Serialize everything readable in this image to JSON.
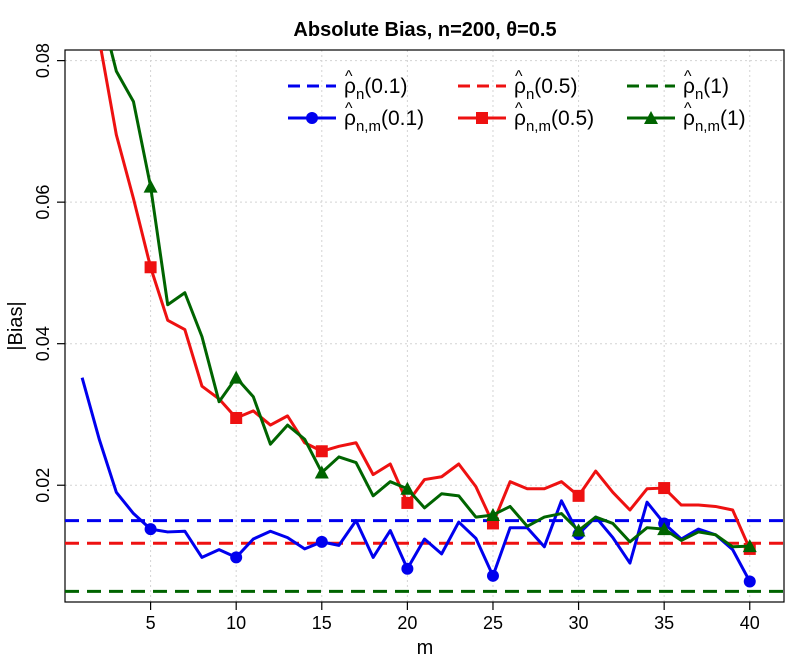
{
  "chart_data": {
    "type": "line",
    "title": "Absolute Bias, n=200, θ=0.5",
    "xlabel": "m",
    "ylabel": "|Bias|",
    "xlim": [
      0,
      42
    ],
    "ylim": [
      0.0035,
      0.0815
    ],
    "x_ticks": [
      5,
      10,
      15,
      20,
      25,
      30,
      35,
      40
    ],
    "y_ticks": [
      0.02,
      0.04,
      0.06,
      0.08
    ],
    "x_tick_labels": [
      "5",
      "10",
      "15",
      "20",
      "25",
      "30",
      "35",
      "40"
    ],
    "y_tick_labels": [
      "0.02",
      "0.04",
      "0.06",
      "0.08"
    ],
    "grid": true,
    "legend_position": "top-right",
    "hlines": [
      {
        "name_base": "ρ",
        "name_hat": "^",
        "name_sub": "n",
        "name_arg": "(0.1)",
        "value": 0.015,
        "color": "#0000ee"
      },
      {
        "name_base": "ρ",
        "name_hat": "^",
        "name_sub": "n",
        "name_arg": "(0.5)",
        "value": 0.0118,
        "color": "#ee1111"
      },
      {
        "name_base": "ρ",
        "name_hat": "^",
        "name_sub": "n",
        "name_arg": "(1)",
        "value": 0.005,
        "color": "#006400"
      }
    ],
    "series": [
      {
        "name_base": "ρ",
        "name_hat": "^",
        "name_sub": "n,m",
        "name_arg": "(0.1)",
        "color": "#0000ee",
        "marker": "circle",
        "x": [
          1,
          2,
          3,
          4,
          5,
          6,
          7,
          8,
          9,
          10,
          11,
          12,
          13,
          14,
          15,
          16,
          17,
          18,
          19,
          20,
          21,
          22,
          23,
          24,
          25,
          26,
          27,
          28,
          29,
          30,
          31,
          32,
          33,
          34,
          35,
          36,
          37,
          38,
          39,
          40
        ],
        "y": [
          0.0352,
          0.0265,
          0.019,
          0.016,
          0.0138,
          0.0134,
          0.0135,
          0.0098,
          0.0109,
          0.0098,
          0.0124,
          0.0135,
          0.0126,
          0.011,
          0.012,
          0.0115,
          0.015,
          0.0098,
          0.0136,
          0.0082,
          0.0124,
          0.0103,
          0.0148,
          0.0125,
          0.0072,
          0.014,
          0.014,
          0.0113,
          0.0178,
          0.0131,
          0.0155,
          0.0126,
          0.009,
          0.0176,
          0.0146,
          0.0124,
          0.0138,
          0.013,
          0.0109,
          0.0064
        ],
        "marker_x": [
          5,
          10,
          15,
          20,
          25,
          30,
          35,
          40
        ]
      },
      {
        "name_base": "ρ",
        "name_hat": "^",
        "name_sub": "n,m",
        "name_arg": "(0.5)",
        "color": "#ee1111",
        "marker": "square",
        "x": [
          2,
          3,
          4,
          5,
          6,
          7,
          8,
          9,
          10,
          11,
          12,
          13,
          14,
          15,
          16,
          17,
          18,
          19,
          20,
          21,
          22,
          23,
          24,
          25,
          26,
          27,
          28,
          29,
          30,
          31,
          32,
          33,
          34,
          35,
          36,
          37,
          38,
          39,
          40
        ],
        "y": [
          0.083,
          0.0695,
          0.0605,
          0.0508,
          0.0433,
          0.042,
          0.034,
          0.0322,
          0.0295,
          0.0305,
          0.0285,
          0.0298,
          0.026,
          0.0248,
          0.0255,
          0.026,
          0.0215,
          0.023,
          0.0175,
          0.0208,
          0.0212,
          0.023,
          0.0198,
          0.0146,
          0.0205,
          0.0195,
          0.0195,
          0.0205,
          0.0185,
          0.022,
          0.019,
          0.0165,
          0.0195,
          0.0196,
          0.0172,
          0.0172,
          0.017,
          0.0165,
          0.011
        ],
        "marker_x": [
          5,
          10,
          15,
          20,
          25,
          30,
          35,
          40
        ]
      },
      {
        "name_base": "ρ",
        "name_hat": "^",
        "name_sub": "n,m",
        "name_arg": "(1)",
        "color": "#006400",
        "marker": "triangle",
        "x": [
          2,
          3,
          4,
          5,
          6,
          7,
          8,
          9,
          10,
          11,
          12,
          13,
          14,
          15,
          16,
          17,
          18,
          19,
          20,
          21,
          22,
          23,
          24,
          25,
          26,
          27,
          28,
          29,
          30,
          31,
          32,
          33,
          34,
          35,
          36,
          37,
          38,
          39,
          40
        ],
        "y": [
          0.088,
          0.0785,
          0.0742,
          0.0622,
          0.0455,
          0.0472,
          0.041,
          0.0318,
          0.0352,
          0.0325,
          0.0258,
          0.0285,
          0.0265,
          0.0218,
          0.024,
          0.0232,
          0.0185,
          0.0205,
          0.0195,
          0.0168,
          0.0188,
          0.0185,
          0.0155,
          0.0158,
          0.017,
          0.0142,
          0.0155,
          0.016,
          0.0136,
          0.0155,
          0.0146,
          0.012,
          0.014,
          0.0138,
          0.0122,
          0.0134,
          0.013,
          0.0113,
          0.0114
        ],
        "marker_x": [
          5,
          10,
          15,
          20,
          25,
          30,
          35,
          40
        ]
      }
    ]
  }
}
